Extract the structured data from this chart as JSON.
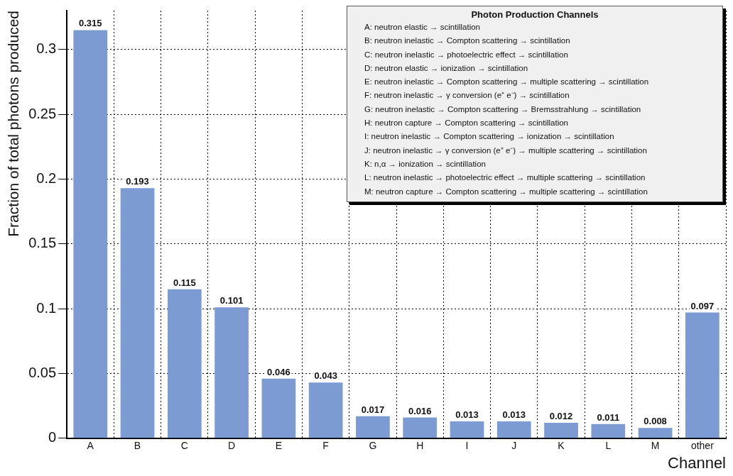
{
  "chart_data": {
    "type": "bar",
    "xlabel": "Channel",
    "ylabel": "Fraction of total photons produced",
    "categories": [
      "A",
      "B",
      "C",
      "D",
      "E",
      "F",
      "G",
      "H",
      "I",
      "J",
      "K",
      "L",
      "M",
      "other"
    ],
    "values": [
      0.315,
      0.193,
      0.115,
      0.101,
      0.046,
      0.043,
      0.017,
      0.016,
      0.013,
      0.013,
      0.012,
      0.011,
      0.008,
      0.097
    ],
    "color": "#7d9bd3",
    "ylim": [
      0,
      0.33
    ],
    "yticks": [
      0,
      0.05,
      0.1,
      0.15,
      0.2,
      0.25,
      0.3
    ],
    "grid": true,
    "data_labels": true,
    "annotations": [
      "Photon Production Channels",
      "A: neutron elastic → scintillation",
      "B: neutron inelastic → Compton scattering → scintillation",
      "C: neutron inelastic → photoelectric effect → scintillation",
      "D: neutron elastic → ionization → scintillation",
      "E: neutron inelastic → Compton scattering → multiple scattering → scintillation",
      "F: neutron inelastic → γ conversion (e⁺ e⁻) → scintillation",
      "G: neutron inelastic → Compton scattering → Bremsstrahlung → scintillation",
      "H: neutron capture → Compton scattering → scintillation",
      "I: neutron inelastic → Compton scattering → ionization → scintillation",
      "J: neutron inelastic → γ conversion (e⁺ e⁻) → multiple scattering → scintillation",
      "K: n,α → ionization → scintillation",
      "L: neutron inelastic → photoelectric effect → multiple scattering → scintillation",
      "M: neutron capture → Compton scattering → multiple scattering → scintillation"
    ]
  }
}
